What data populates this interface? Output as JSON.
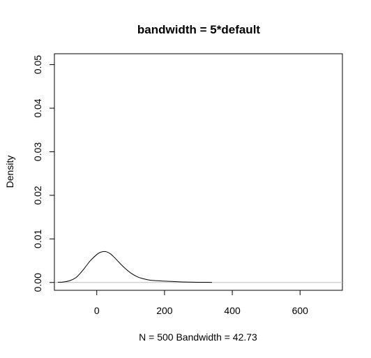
{
  "chart_data": {
    "type": "line",
    "title": "bandwidth = 5*default",
    "xlabel": "N = 500   Bandwidth = 42.73",
    "ylabel": "Density",
    "xlim": [
      -125,
      725
    ],
    "ylim": [
      -0.0018,
      0.0525
    ],
    "x_ticks": [
      0,
      200,
      400,
      600
    ],
    "x_tick_labels": [
      "0",
      "200",
      "400",
      "600"
    ],
    "y_ticks": [
      0.0,
      0.01,
      0.02,
      0.03,
      0.04,
      0.05
    ],
    "y_tick_labels": [
      "0.00",
      "0.01",
      "0.02",
      "0.03",
      "0.04",
      "0.05"
    ],
    "grid": false,
    "zero_line": true,
    "series": [
      {
        "x": [
          -115,
          -100,
          -80,
          -60,
          -40,
          -20,
          0,
          10,
          20,
          30,
          40,
          50,
          60,
          80,
          100,
          120,
          140,
          160,
          180,
          200,
          230,
          260,
          300,
          340
        ],
        "y": [
          5e-05,
          0.0001,
          0.0004,
          0.0012,
          0.0029,
          0.0049,
          0.0064,
          0.0069,
          0.0071,
          0.007,
          0.0066,
          0.0059,
          0.0051,
          0.0035,
          0.0022,
          0.0013,
          0.0008,
          0.0005,
          0.0004,
          0.0003,
          0.0002,
          0.0001,
          5e-05,
          2e-05
        ]
      }
    ]
  }
}
